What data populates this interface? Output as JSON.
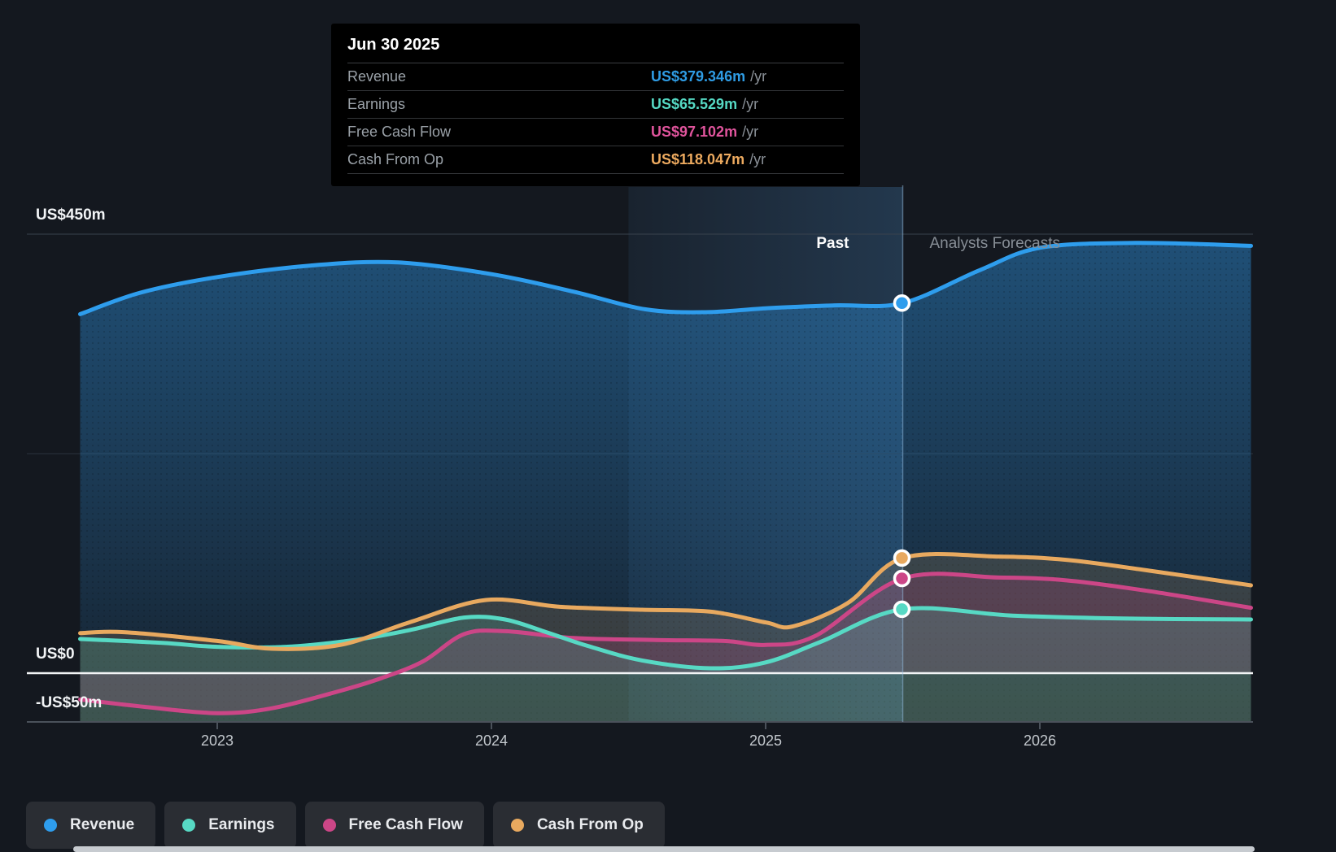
{
  "tooltip": {
    "date": "Jun 30 2025",
    "rows": [
      {
        "label": "Revenue",
        "value": "US$379.346m",
        "unit": "/yr",
        "color": "#2f9ce4"
      },
      {
        "label": "Earnings",
        "value": "US$65.529m",
        "unit": "/yr",
        "color": "#55d8c3"
      },
      {
        "label": "Free Cash Flow",
        "value": "US$97.102m",
        "unit": "/yr",
        "color": "#e0549c"
      },
      {
        "label": "Cash From Op",
        "value": "US$118.047m",
        "unit": "/yr",
        "color": "#edaa5f"
      }
    ]
  },
  "zones": {
    "past_label": "Past",
    "forecast_label": "Analysts Forecasts"
  },
  "y_axis": [
    {
      "label": "US$450m",
      "value": 450
    },
    {
      "label": "US$0",
      "value": 0
    },
    {
      "label": "-US$50m",
      "value": -50
    }
  ],
  "x_axis": [
    {
      "label": "2023",
      "year": 2023
    },
    {
      "label": "2024",
      "year": 2024
    },
    {
      "label": "2025",
      "year": 2025
    },
    {
      "label": "2026",
      "year": 2026
    }
  ],
  "legend": [
    {
      "label": "Revenue",
      "color": "#2e9ded"
    },
    {
      "label": "Earnings",
      "color": "#57d9c4"
    },
    {
      "label": "Free Cash Flow",
      "color": "#cc4687"
    },
    {
      "label": "Cash From Op",
      "color": "#e8a95f"
    }
  ],
  "chart_data": {
    "type": "area",
    "title": "",
    "x_unit": "year",
    "y_unit": "US$m",
    "xlim": [
      2022.49,
      2026.77
    ],
    "ylim": [
      -50,
      450
    ],
    "gridlines": [
      450,
      225
    ],
    "zero_line": 0,
    "highlight_band": [
      2024.5,
      2025.5
    ],
    "past_forecast_boundary": 2025.5,
    "legend_position": "bottom-left",
    "series": [
      {
        "name": "Revenue",
        "color": "#2e9ded",
        "fill": "revenue",
        "marker_value": 379.346,
        "points": [
          [
            2022.5,
            368
          ],
          [
            2022.72,
            390
          ],
          [
            2023.0,
            406
          ],
          [
            2023.35,
            418
          ],
          [
            2023.66,
            421
          ],
          [
            2024.0,
            409
          ],
          [
            2024.3,
            391
          ],
          [
            2024.56,
            373
          ],
          [
            2024.78,
            370
          ],
          [
            2025.0,
            374
          ],
          [
            2025.25,
            377
          ],
          [
            2025.5,
            379.3
          ],
          [
            2025.78,
            413
          ],
          [
            2026.0,
            436
          ],
          [
            2026.35,
            441
          ],
          [
            2026.77,
            438
          ]
        ]
      },
      {
        "name": "Free Cash Flow",
        "color": "#cc4687",
        "fill": "zero",
        "marker_value": 97.102,
        "points": [
          [
            2022.5,
            -27
          ],
          [
            2022.75,
            -35
          ],
          [
            2023.0,
            -41
          ],
          [
            2023.2,
            -36
          ],
          [
            2023.45,
            -18
          ],
          [
            2023.6,
            -5
          ],
          [
            2023.75,
            12
          ],
          [
            2023.9,
            40
          ],
          [
            2024.05,
            43
          ],
          [
            2024.3,
            36
          ],
          [
            2024.6,
            34
          ],
          [
            2024.85,
            33
          ],
          [
            2025.0,
            29
          ],
          [
            2025.18,
            38
          ],
          [
            2025.5,
            97.1
          ],
          [
            2025.85,
            98
          ],
          [
            2026.1,
            95
          ],
          [
            2026.4,
            84
          ],
          [
            2026.77,
            67
          ]
        ]
      },
      {
        "name": "Earnings",
        "color": "#57d9c4",
        "fill": "bottom",
        "marker_value": 65.529,
        "points": [
          [
            2022.5,
            35
          ],
          [
            2022.8,
            31
          ],
          [
            2023.0,
            27
          ],
          [
            2023.25,
            27
          ],
          [
            2023.5,
            34
          ],
          [
            2023.7,
            44
          ],
          [
            2023.9,
            57
          ],
          [
            2024.05,
            55
          ],
          [
            2024.2,
            42
          ],
          [
            2024.35,
            28
          ],
          [
            2024.55,
            13
          ],
          [
            2024.8,
            5
          ],
          [
            2025.0,
            11
          ],
          [
            2025.2,
            32
          ],
          [
            2025.5,
            65.5
          ],
          [
            2025.9,
            59
          ],
          [
            2026.3,
            56
          ],
          [
            2026.77,
            55
          ]
        ]
      },
      {
        "name": "Cash From Op",
        "color": "#e8a95f",
        "fill": "bottom",
        "marker_value": 118.047,
        "points": [
          [
            2022.5,
            41
          ],
          [
            2022.66,
            42
          ],
          [
            2023.0,
            33
          ],
          [
            2023.2,
            25
          ],
          [
            2023.45,
            29
          ],
          [
            2023.7,
            52
          ],
          [
            2023.98,
            75
          ],
          [
            2024.25,
            68
          ],
          [
            2024.55,
            65
          ],
          [
            2024.8,
            63
          ],
          [
            2025.0,
            52
          ],
          [
            2025.1,
            48
          ],
          [
            2025.3,
            72
          ],
          [
            2025.5,
            118
          ],
          [
            2025.85,
            119.5
          ],
          [
            2026.1,
            116
          ],
          [
            2026.4,
            105
          ],
          [
            2026.77,
            90
          ]
        ]
      }
    ]
  }
}
